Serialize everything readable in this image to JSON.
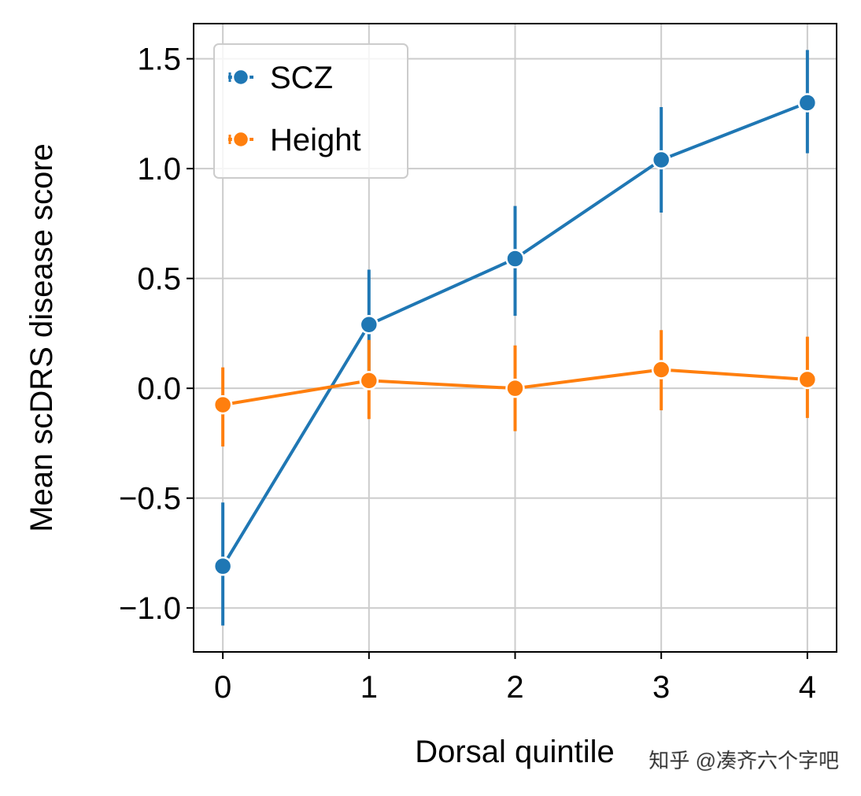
{
  "chart_data": {
    "type": "line",
    "title": "",
    "xlabel": "Dorsal quintile",
    "ylabel": "Mean scDRS disease score",
    "x": [
      0,
      1,
      2,
      3,
      4
    ],
    "xlim": [
      -0.2,
      4.2
    ],
    "ylim": [
      -1.2,
      1.66
    ],
    "xticks": [
      "0",
      "1",
      "2",
      "3",
      "4"
    ],
    "yticks": [
      {
        "value": -1.0,
        "label": "−1.0"
      },
      {
        "value": -0.5,
        "label": "−0.5"
      },
      {
        "value": 0.0,
        "label": "0.0"
      },
      {
        "value": 0.5,
        "label": "0.5"
      },
      {
        "value": 1.0,
        "label": "1.0"
      },
      {
        "value": 1.5,
        "label": "1.5"
      }
    ],
    "grid": true,
    "legend_position": "top-left",
    "series": [
      {
        "name": "SCZ",
        "color": "#1f77b4",
        "values": [
          -0.81,
          0.29,
          0.59,
          1.04,
          1.3
        ],
        "err_low": [
          -1.08,
          0.05,
          0.33,
          0.8,
          1.07
        ],
        "err_high": [
          -0.52,
          0.54,
          0.83,
          1.28,
          1.54
        ]
      },
      {
        "name": "Height",
        "color": "#ff7f0e",
        "values": [
          -0.075,
          0.035,
          0.0,
          0.085,
          0.04
        ],
        "err_low": [
          -0.265,
          -0.14,
          -0.195,
          -0.1,
          -0.135
        ],
        "err_high": [
          0.095,
          0.22,
          0.195,
          0.265,
          0.235
        ]
      }
    ]
  },
  "watermark": "知乎 @凑齐六个字吧"
}
